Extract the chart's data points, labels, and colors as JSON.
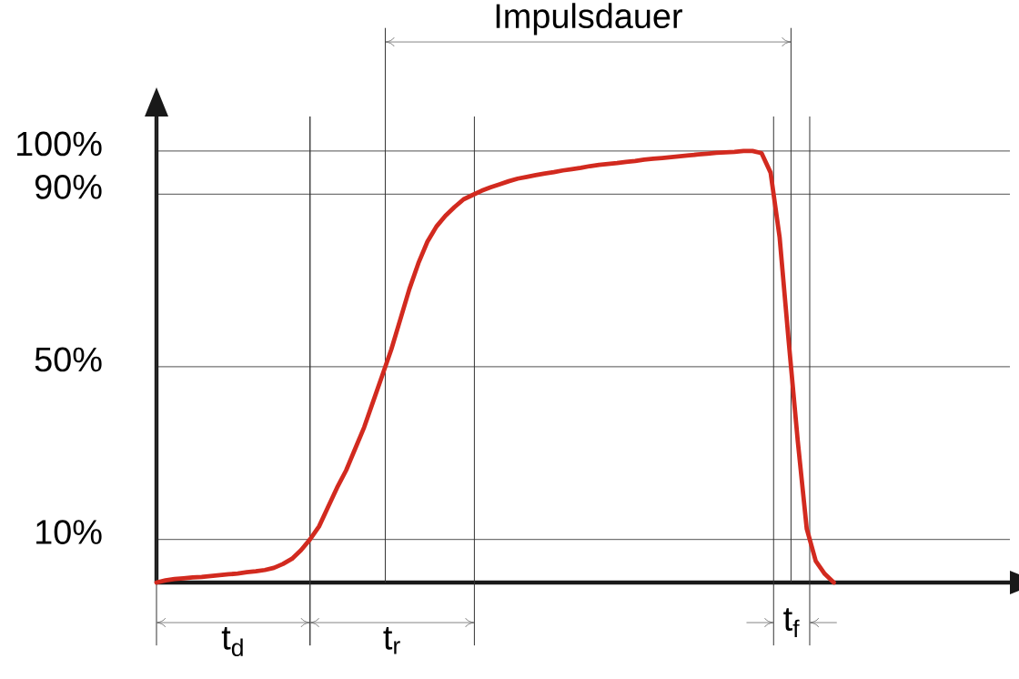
{
  "chart_data": {
    "type": "line",
    "categories": [
      null,
      null,
      null,
      null,
      null,
      null,
      null,
      null,
      null,
      null,
      null,
      null,
      null,
      null,
      null,
      null,
      null,
      null,
      null,
      null,
      null,
      null,
      null,
      null,
      null,
      null,
      null,
      null,
      null,
      null,
      null,
      null,
      null,
      null,
      null,
      null,
      null,
      null,
      null,
      null,
      null,
      null,
      null,
      null,
      null,
      null,
      null,
      null,
      null,
      null,
      null,
      null,
      null,
      null,
      null,
      null,
      null,
      null,
      null,
      null,
      null,
      null,
      null,
      null,
      null,
      null,
      null,
      null,
      null,
      null,
      null,
      null,
      null,
      null,
      null,
      null
    ],
    "values": [
      0,
      0.5,
      0.8,
      1.0,
      1.2,
      1.3,
      1.5,
      1.7,
      1.9,
      2.1,
      2.4,
      2.6,
      2.9,
      3.4,
      4.3,
      5.5,
      7.5,
      10,
      13,
      17.5,
      22,
      26,
      31,
      36,
      42,
      48,
      54,
      61,
      68,
      74,
      79,
      82.5,
      85,
      87,
      88.8,
      89.8,
      90.8,
      91.6,
      92.3,
      93,
      93.6,
      94,
      94.4,
      94.8,
      95.1,
      95.5,
      95.8,
      96.1,
      96.5,
      96.8,
      97,
      97.2,
      97.5,
      97.7,
      98,
      98.2,
      98.4,
      98.6,
      98.8,
      99,
      99.2,
      99.4,
      99.6,
      99.7,
      99.8,
      100,
      100,
      99.5,
      95,
      80,
      56,
      33,
      12.5,
      5,
      2,
      0
    ],
    "color": "#d22a1f",
    "ylim": [
      0,
      108
    ],
    "yticks": [
      {
        "value": 10,
        "label": "10%"
      },
      {
        "value": 50,
        "label": "50%"
      },
      {
        "value": 90,
        "label": "90%"
      },
      {
        "value": 100,
        "label": "100%"
      }
    ],
    "grid": "y",
    "tick_labels": "y",
    "annotations": [
      "t$_{d}$",
      "t$_{r}$",
      "Impulsdauer",
      "t$_{f}$"
    ]
  }
}
